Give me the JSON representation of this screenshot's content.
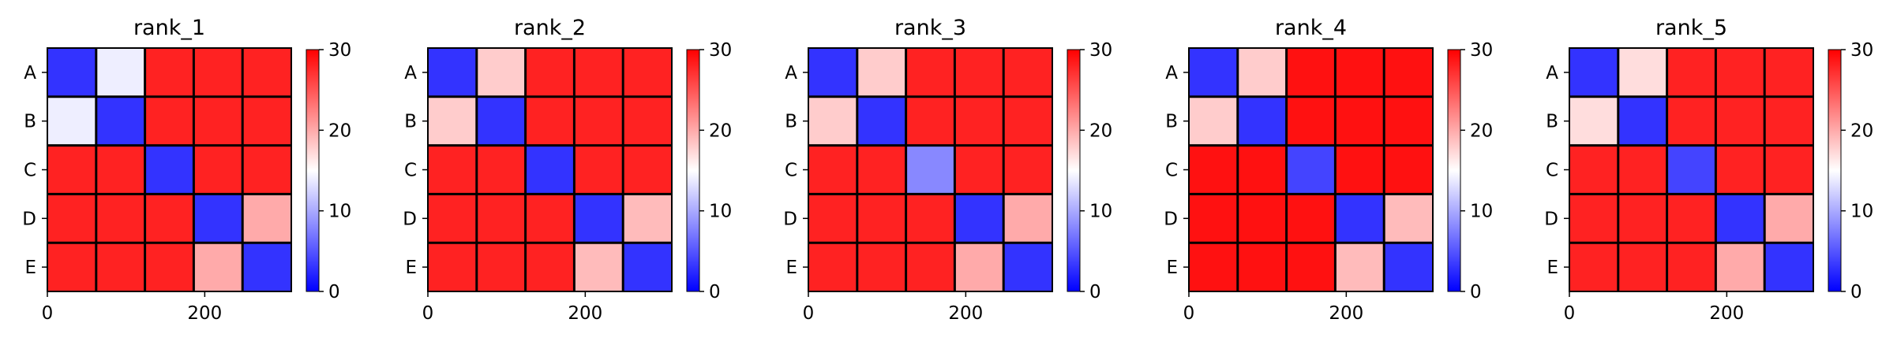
{
  "chart_data": [
    {
      "type": "heatmap",
      "title": "rank_1",
      "ytick_labels": [
        "A",
        "B",
        "C",
        "D",
        "E"
      ],
      "xticks": [
        0,
        200
      ],
      "xlim": [
        0,
        310
      ],
      "block_mean_values": [
        [
          3,
          14,
          28,
          28,
          28
        ],
        [
          14,
          3,
          28,
          28,
          28
        ],
        [
          28,
          28,
          3,
          28,
          28
        ],
        [
          28,
          28,
          28,
          3,
          20
        ],
        [
          28,
          28,
          28,
          20,
          3
        ]
      ],
      "colorbar": {
        "ticks": [
          0,
          10,
          20,
          30
        ],
        "range": [
          0,
          30
        ],
        "colormap": "bwr",
        "colors": [
          "#0000ff",
          "#ffffff",
          "#ff0000"
        ]
      }
    },
    {
      "type": "heatmap",
      "title": "rank_2",
      "ytick_labels": [
        "A",
        "B",
        "C",
        "D",
        "E"
      ],
      "xticks": [
        0,
        200
      ],
      "xlim": [
        0,
        310
      ],
      "block_mean_values": [
        [
          3,
          18,
          28,
          28,
          28
        ],
        [
          18,
          3,
          28,
          28,
          28
        ],
        [
          28,
          28,
          3,
          28,
          28
        ],
        [
          28,
          28,
          28,
          3,
          19
        ],
        [
          28,
          28,
          28,
          19,
          3
        ]
      ],
      "colorbar": {
        "ticks": [
          0,
          10,
          20,
          30
        ],
        "range": [
          0,
          30
        ],
        "colormap": "bwr",
        "colors": [
          "#0000ff",
          "#ffffff",
          "#ff0000"
        ]
      }
    },
    {
      "type": "heatmap",
      "title": "rank_3",
      "ytick_labels": [
        "A",
        "B",
        "C",
        "D",
        "E"
      ],
      "xticks": [
        0,
        200
      ],
      "xlim": [
        0,
        310
      ],
      "block_mean_values": [
        [
          3,
          18,
          28,
          28,
          28
        ],
        [
          18,
          3,
          28,
          28,
          28
        ],
        [
          28,
          28,
          8,
          28,
          28
        ],
        [
          28,
          28,
          28,
          3,
          20
        ],
        [
          28,
          28,
          28,
          20,
          3
        ]
      ],
      "colorbar": {
        "ticks": [
          0,
          10,
          20,
          30
        ],
        "range": [
          0,
          30
        ],
        "colormap": "bwr",
        "colors": [
          "#0000ff",
          "#ffffff",
          "#ff0000"
        ]
      }
    },
    {
      "type": "heatmap",
      "title": "rank_4",
      "ytick_labels": [
        "A",
        "B",
        "C",
        "D",
        "E"
      ],
      "xticks": [
        0,
        200
      ],
      "xlim": [
        0,
        310
      ],
      "block_mean_values": [
        [
          3,
          18,
          29,
          29,
          29
        ],
        [
          18,
          3,
          29,
          29,
          29
        ],
        [
          29,
          29,
          4,
          29,
          29
        ],
        [
          29,
          29,
          29,
          3,
          19
        ],
        [
          29,
          29,
          29,
          19,
          3
        ]
      ],
      "colorbar": {
        "ticks": [
          0,
          10,
          20,
          30
        ],
        "range": [
          0,
          30
        ],
        "colormap": "bwr",
        "colors": [
          "#0000ff",
          "#ffffff",
          "#ff0000"
        ]
      }
    },
    {
      "type": "heatmap",
      "title": "rank_5",
      "ytick_labels": [
        "A",
        "B",
        "C",
        "D",
        "E"
      ],
      "xticks": [
        0,
        200
      ],
      "xlim": [
        0,
        310
      ],
      "block_mean_values": [
        [
          3,
          17,
          28,
          28,
          28
        ],
        [
          17,
          3,
          28,
          28,
          28
        ],
        [
          28,
          28,
          4,
          28,
          28
        ],
        [
          28,
          28,
          28,
          3,
          20
        ],
        [
          28,
          28,
          28,
          20,
          3
        ]
      ],
      "colorbar": {
        "ticks": [
          0,
          10,
          20,
          30
        ],
        "range": [
          0,
          30
        ],
        "colormap": "bwr",
        "colors": [
          "#0000ff",
          "#ffffff",
          "#ff0000"
        ]
      }
    }
  ]
}
